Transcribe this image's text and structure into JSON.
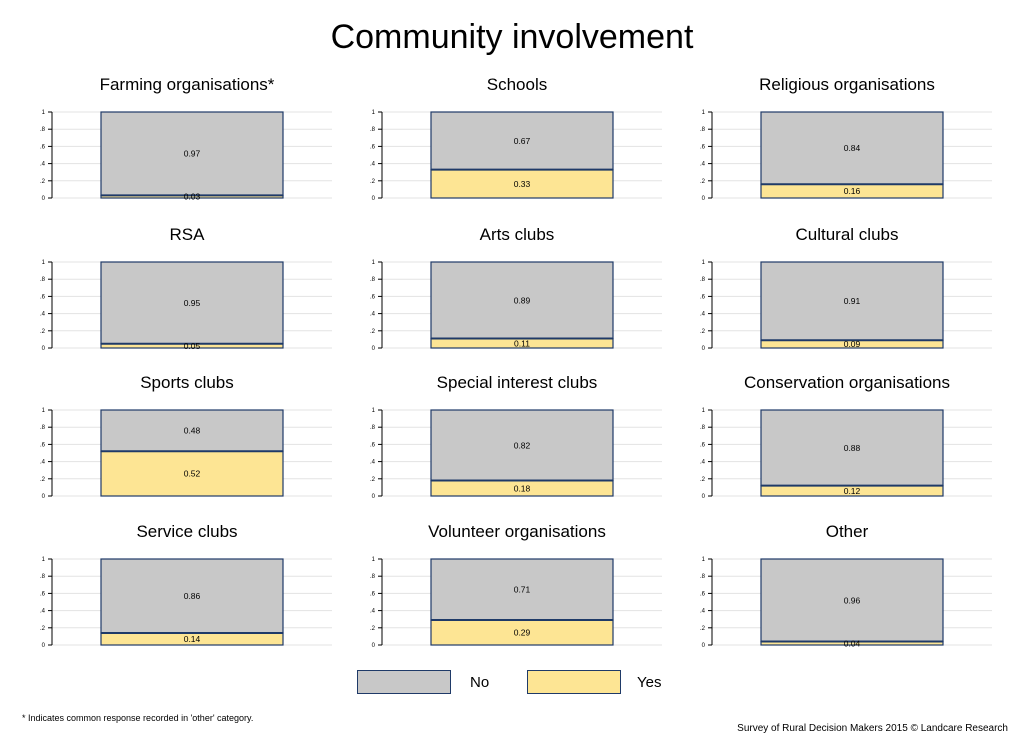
{
  "chart_data": {
    "type": "bar",
    "title": "Community involvement",
    "ylim": [
      0,
      1
    ],
    "yticks": [
      "0",
      ".2",
      ".4",
      ".6",
      ".8",
      "1"
    ],
    "stacked": true,
    "colors": {
      "No": "#c8c8c8",
      "Yes": "#fde594",
      "border": "#1f3a68"
    },
    "panels": [
      {
        "title": "Farming organisations*",
        "no": 0.97,
        "yes": 0.03,
        "no_label": "0.97",
        "yes_label": "0.03"
      },
      {
        "title": "Schools",
        "no": 0.67,
        "yes": 0.33,
        "no_label": "0.67",
        "yes_label": "0.33"
      },
      {
        "title": "Religious organisations",
        "no": 0.84,
        "yes": 0.16,
        "no_label": "0.84",
        "yes_label": "0.16"
      },
      {
        "title": "RSA",
        "no": 0.95,
        "yes": 0.05,
        "no_label": "0.95",
        "yes_label": "0.05"
      },
      {
        "title": "Arts clubs",
        "no": 0.89,
        "yes": 0.11,
        "no_label": "0.89",
        "yes_label": "0.11"
      },
      {
        "title": "Cultural clubs",
        "no": 0.91,
        "yes": 0.09,
        "no_label": "0.91",
        "yes_label": "0.09"
      },
      {
        "title": "Sports clubs",
        "no": 0.48,
        "yes": 0.52,
        "no_label": "0.48",
        "yes_label": "0.52"
      },
      {
        "title": "Special interest clubs",
        "no": 0.82,
        "yes": 0.18,
        "no_label": "0.82",
        "yes_label": "0.18"
      },
      {
        "title": "Conservation organisations",
        "no": 0.88,
        "yes": 0.12,
        "no_label": "0.88",
        "yes_label": "0.12"
      },
      {
        "title": "Service clubs",
        "no": 0.86,
        "yes": 0.14,
        "no_label": "0.86",
        "yes_label": "0.14"
      },
      {
        "title": "Volunteer organisations",
        "no": 0.71,
        "yes": 0.29,
        "no_label": "0.71",
        "yes_label": "0.29"
      },
      {
        "title": "Other",
        "no": 0.96,
        "yes": 0.04,
        "no_label": "0.96",
        "yes_label": "0.04"
      }
    ],
    "legend": [
      {
        "name": "No",
        "label": "No"
      },
      {
        "name": "Yes",
        "label": "Yes"
      }
    ],
    "legend_placement": "bottom-center"
  },
  "footnote": "* Indicates common response recorded in 'other' category.",
  "credit": "Survey of Rural Decision Makers 2015 © Landcare Research"
}
